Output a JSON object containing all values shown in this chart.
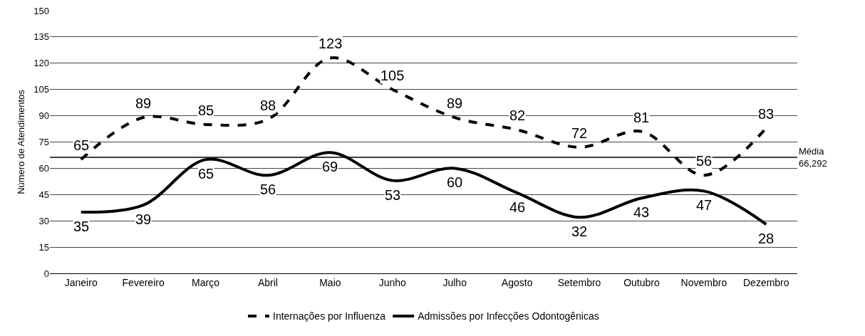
{
  "chart_data": {
    "type": "line",
    "ylabel": "Número de Atendimentos",
    "categories": [
      "Janeiro",
      "Fevereiro",
      "Março",
      "Abril",
      "Maio",
      "Junho",
      "Julho",
      "Agosto",
      "Setembro",
      "Outubro",
      "Novembro",
      "Dezembro"
    ],
    "series": [
      {
        "name": "Internações por Influenza",
        "color": "#000000",
        "line_style": "dashed",
        "values": [
          65,
          89,
          85,
          88,
          123,
          105,
          89,
          82,
          72,
          81,
          56,
          83
        ]
      },
      {
        "name": "Admissões por Infecções Odontogênicas",
        "color": "#000000",
        "line_style": "solid",
        "values": [
          35,
          39,
          65,
          56,
          69,
          53,
          60,
          46,
          32,
          43,
          47,
          28
        ]
      }
    ],
    "ylim": [
      0,
      150
    ],
    "yticks": [
      0,
      15,
      30,
      45,
      60,
      75,
      90,
      105,
      120,
      135,
      150
    ],
    "grid": "y",
    "legend": "bottom",
    "marker": "none",
    "data_labels": true,
    "ref_lines": [
      {
        "axis": "y",
        "value": 66.292,
        "label": "Média\n66,292",
        "color": "#000000",
        "line_style": "solid"
      }
    ]
  }
}
